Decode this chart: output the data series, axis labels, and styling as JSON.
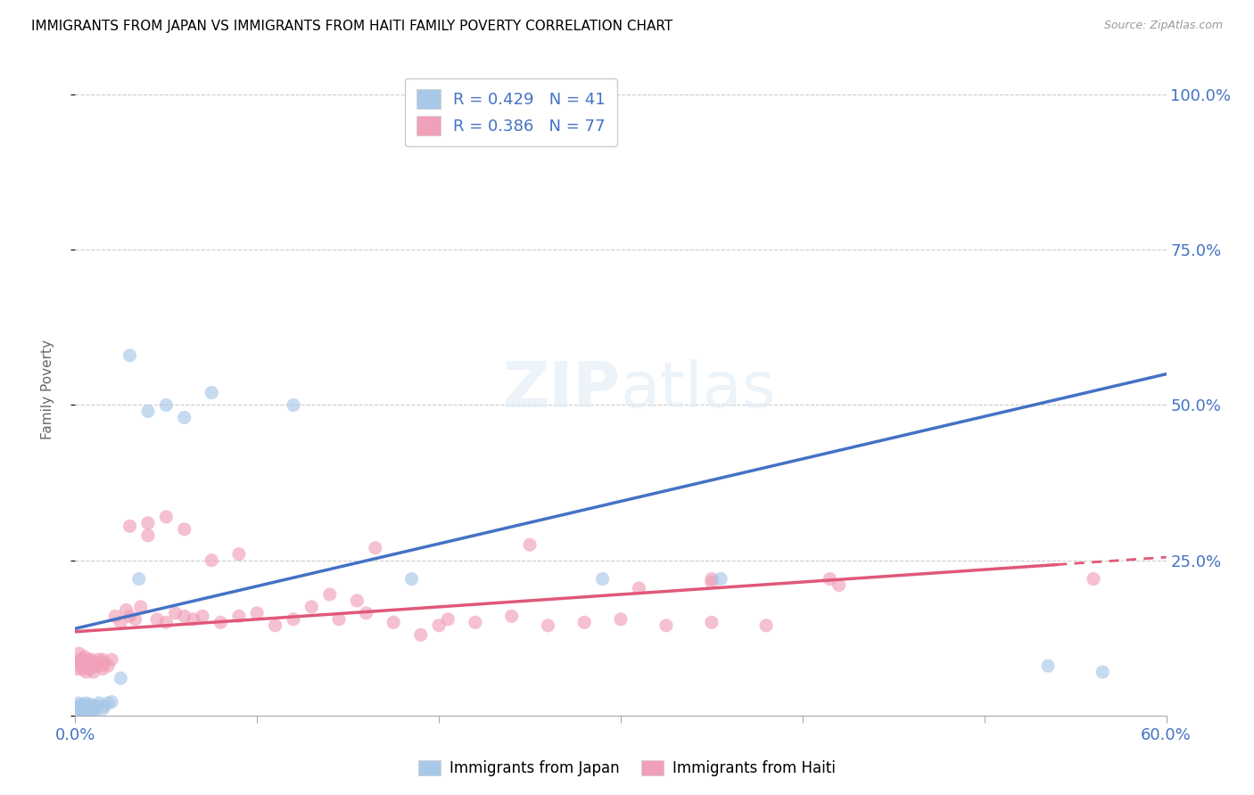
{
  "title": "IMMIGRANTS FROM JAPAN VS IMMIGRANTS FROM HAITI FAMILY POVERTY CORRELATION CHART",
  "source": "Source: ZipAtlas.com",
  "ylabel": "Family Poverty",
  "color_japan": "#a8c8e8",
  "color_haiti": "#f0a0b8",
  "color_japan_line": "#4472c4",
  "color_haiti_line": "#e05878",
  "color_axis_labels": "#4472c4",
  "legend_r1": "R = 0.429",
  "legend_n1": "N = 41",
  "legend_r2": "R = 0.386",
  "legend_n2": "N = 77",
  "japan_x": [
    0.001,
    0.002,
    0.002,
    0.003,
    0.003,
    0.003,
    0.004,
    0.004,
    0.004,
    0.005,
    0.005,
    0.005,
    0.006,
    0.006,
    0.007,
    0.007,
    0.008,
    0.008,
    0.009,
    0.01,
    0.01,
    0.011,
    0.012,
    0.013,
    0.015,
    0.016,
    0.018,
    0.02,
    0.025,
    0.03,
    0.035,
    0.04,
    0.05,
    0.06,
    0.075,
    0.12,
    0.185,
    0.29,
    0.355,
    0.535,
    0.565
  ],
  "japan_y": [
    0.01,
    0.015,
    0.02,
    0.005,
    0.01,
    0.015,
    0.008,
    0.012,
    0.018,
    0.005,
    0.01,
    0.015,
    0.01,
    0.02,
    0.008,
    0.015,
    0.01,
    0.018,
    0.012,
    0.005,
    0.015,
    0.01,
    0.015,
    0.02,
    0.01,
    0.015,
    0.02,
    0.022,
    0.06,
    0.58,
    0.22,
    0.49,
    0.5,
    0.48,
    0.52,
    0.5,
    0.22,
    0.22,
    0.22,
    0.08,
    0.07
  ],
  "haiti_x": [
    0.001,
    0.002,
    0.002,
    0.003,
    0.003,
    0.004,
    0.004,
    0.005,
    0.005,
    0.006,
    0.006,
    0.007,
    0.007,
    0.008,
    0.008,
    0.009,
    0.009,
    0.01,
    0.01,
    0.011,
    0.012,
    0.013,
    0.014,
    0.015,
    0.015,
    0.016,
    0.018,
    0.02,
    0.022,
    0.025,
    0.028,
    0.03,
    0.033,
    0.036,
    0.04,
    0.045,
    0.05,
    0.055,
    0.06,
    0.065,
    0.07,
    0.08,
    0.09,
    0.1,
    0.11,
    0.12,
    0.13,
    0.145,
    0.16,
    0.175,
    0.19,
    0.205,
    0.22,
    0.24,
    0.26,
    0.28,
    0.3,
    0.325,
    0.35,
    0.38,
    0.14,
    0.155,
    0.165,
    0.2,
    0.25,
    0.31,
    0.35,
    0.06,
    0.075,
    0.09,
    0.03,
    0.04,
    0.05,
    0.415,
    0.35,
    0.42,
    0.56
  ],
  "haiti_y": [
    0.075,
    0.085,
    0.1,
    0.08,
    0.09,
    0.075,
    0.09,
    0.08,
    0.095,
    0.07,
    0.085,
    0.08,
    0.09,
    0.075,
    0.085,
    0.08,
    0.09,
    0.07,
    0.085,
    0.08,
    0.085,
    0.09,
    0.08,
    0.075,
    0.09,
    0.085,
    0.08,
    0.09,
    0.16,
    0.15,
    0.17,
    0.16,
    0.155,
    0.175,
    0.29,
    0.155,
    0.15,
    0.165,
    0.16,
    0.155,
    0.16,
    0.15,
    0.16,
    0.165,
    0.145,
    0.155,
    0.175,
    0.155,
    0.165,
    0.15,
    0.13,
    0.155,
    0.15,
    0.16,
    0.145,
    0.15,
    0.155,
    0.145,
    0.15,
    0.145,
    0.195,
    0.185,
    0.27,
    0.145,
    0.275,
    0.205,
    0.22,
    0.3,
    0.25,
    0.26,
    0.305,
    0.31,
    0.32,
    0.22,
    0.215,
    0.21,
    0.22
  ],
  "xlim": [
    0.0,
    0.6
  ],
  "ylim": [
    0.0,
    1.05
  ],
  "xtick_positions": [
    0.0,
    0.1,
    0.2,
    0.3,
    0.4,
    0.5,
    0.6
  ],
  "ytick_positions": [
    0.0,
    0.25,
    0.5,
    0.75,
    1.0
  ],
  "ytick_labels": [
    "",
    "25.0%",
    "50.0%",
    "75.0%",
    "100.0%"
  ],
  "japan_line_x": [
    0.0,
    0.6
  ],
  "japan_line_y": [
    0.14,
    0.55
  ],
  "haiti_line_x": [
    0.0,
    0.6
  ],
  "haiti_line_y": [
    0.135,
    0.255
  ]
}
